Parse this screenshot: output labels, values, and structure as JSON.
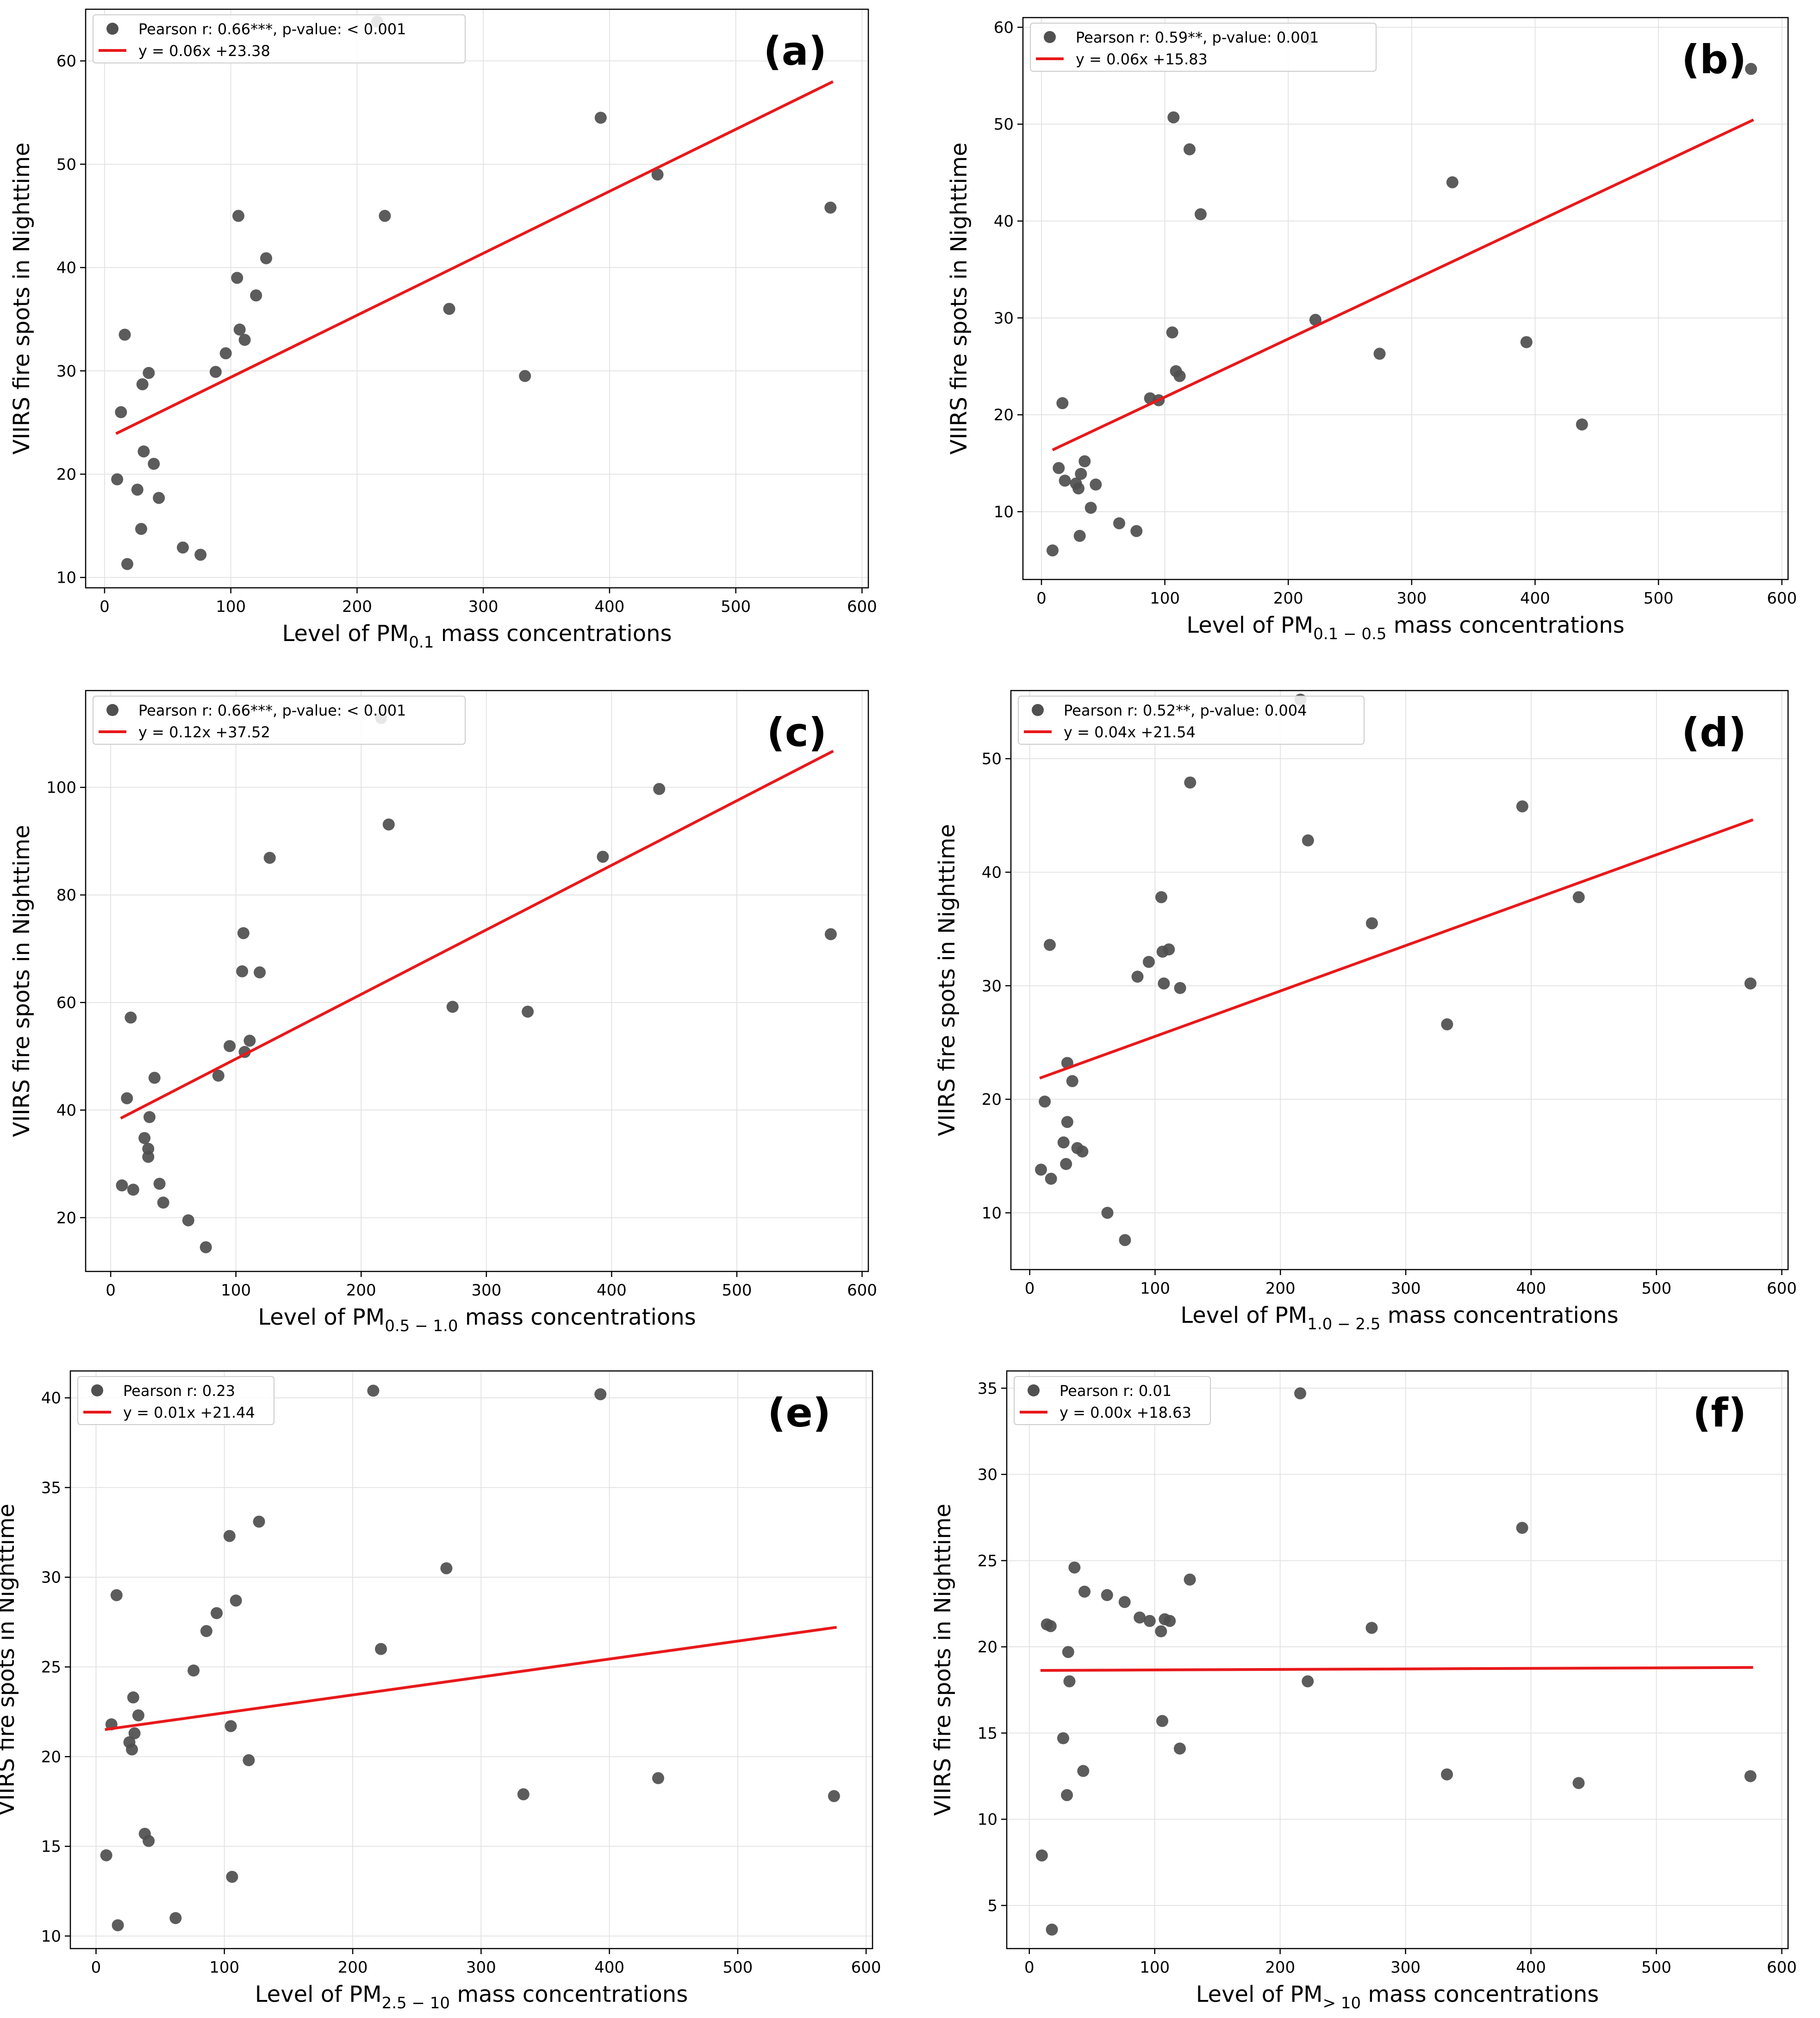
{
  "chart_data": [
    {
      "panel": "(a)",
      "type": "scatter",
      "xlabel_prefix": "Level of PM",
      "xlabel_sub": "0.1",
      "xlabel_suffix": "mass concentrations",
      "ylabel": "VIIRS fire spots in Nighttime",
      "xlim": [
        -15,
        605
      ],
      "ylim": [
        9,
        65
      ],
      "xticks": [
        0,
        100,
        200,
        300,
        400,
        500,
        600
      ],
      "yticks": [
        10,
        20,
        30,
        40,
        50,
        60
      ],
      "legend": {
        "scatter_label": "Pearson r: 0.66***, p-value: < 0.001",
        "line_label": "y = 0.06x +23.38"
      },
      "fit": {
        "slope": 0.06,
        "intercept": 23.38,
        "x_range": [
          10,
          576
        ]
      },
      "points": [
        [
          10,
          19.5
        ],
        [
          13,
          26
        ],
        [
          16,
          33.5
        ],
        [
          18,
          11.3
        ],
        [
          26,
          18.5
        ],
        [
          29,
          14.7
        ],
        [
          30,
          28.7
        ],
        [
          31,
          22.2
        ],
        [
          35,
          29.8
        ],
        [
          39,
          21
        ],
        [
          43,
          17.7
        ],
        [
          62,
          12.9
        ],
        [
          76,
          12.2
        ],
        [
          88,
          29.9
        ],
        [
          96,
          31.7
        ],
        [
          105,
          39
        ],
        [
          106,
          45
        ],
        [
          107,
          34
        ],
        [
          111,
          33
        ],
        [
          120,
          37.3
        ],
        [
          128,
          40.9
        ],
        [
          216,
          63.8
        ],
        [
          222,
          45
        ],
        [
          273,
          36
        ],
        [
          333,
          29.5
        ],
        [
          393,
          54.5
        ],
        [
          438,
          49
        ],
        [
          575,
          45.8
        ]
      ]
    },
    {
      "panel": "(b)",
      "type": "scatter",
      "xlabel_prefix": "Level of PM",
      "xlabel_sub": "0.1 − 0.5",
      "xlabel_suffix": "mass concentrations",
      "ylabel": "VIIRS fire spots in Nighttime",
      "xlim": [
        -15,
        605
      ],
      "ylim": [
        3,
        61
      ],
      "xticks": [
        0,
        100,
        200,
        300,
        400,
        500,
        600
      ],
      "yticks": [
        10,
        20,
        30,
        40,
        50,
        60
      ],
      "legend": {
        "scatter_label": "Pearson r: 0.59**, p-value: 0.001",
        "line_label": "y = 0.06x +15.83"
      },
      "fit": {
        "slope": 0.06,
        "intercept": 15.83,
        "x_range": [
          10,
          576
        ]
      },
      "points": [
        [
          9,
          6
        ],
        [
          14,
          14.5
        ],
        [
          17,
          21.2
        ],
        [
          19,
          13.2
        ],
        [
          28,
          12.9
        ],
        [
          30,
          12.4
        ],
        [
          31,
          7.5
        ],
        [
          32,
          13.9
        ],
        [
          35,
          15.2
        ],
        [
          40,
          10.4
        ],
        [
          44,
          12.8
        ],
        [
          63,
          8.8
        ],
        [
          77,
          8
        ],
        [
          88,
          21.7
        ],
        [
          95,
          21.5
        ],
        [
          106,
          28.5
        ],
        [
          107,
          50.7
        ],
        [
          109,
          24.5
        ],
        [
          112,
          24
        ],
        [
          120,
          47.4
        ],
        [
          129,
          40.7
        ],
        [
          217,
          58.8
        ],
        [
          222,
          29.8
        ],
        [
          274,
          26.3
        ],
        [
          333,
          44
        ],
        [
          393,
          27.5
        ],
        [
          438,
          19
        ],
        [
          575,
          55.7
        ]
      ]
    },
    {
      "panel": "(c)",
      "type": "scatter",
      "xlabel_prefix": "Level of PM",
      "xlabel_sub": "0.5 − 1.0",
      "xlabel_suffix": "mass concentrations",
      "ylabel": "VIIRS fire spots in Nighttime",
      "xlim": [
        -20,
        605
      ],
      "ylim": [
        10,
        118
      ],
      "xticks": [
        0,
        100,
        200,
        300,
        400,
        500,
        600
      ],
      "yticks": [
        20,
        40,
        60,
        80,
        100
      ],
      "legend": {
        "scatter_label": "Pearson r: 0.66***, p-value: < 0.001",
        "line_label": "y = 0.12x +37.52"
      },
      "fit": {
        "slope": 0.12,
        "intercept": 37.52,
        "x_range": [
          9,
          576
        ]
      },
      "points": [
        [
          9,
          26
        ],
        [
          13,
          42.2
        ],
        [
          16,
          57.2
        ],
        [
          18,
          25.2
        ],
        [
          27,
          34.8
        ],
        [
          30,
          32.8
        ],
        [
          30,
          31.3
        ],
        [
          31,
          38.7
        ],
        [
          35,
          46
        ],
        [
          39,
          26.3
        ],
        [
          42,
          22.8
        ],
        [
          62,
          19.5
        ],
        [
          76,
          14.5
        ],
        [
          86,
          46.4
        ],
        [
          95,
          51.9
        ],
        [
          105,
          65.8
        ],
        [
          106,
          72.9
        ],
        [
          107,
          50.8
        ],
        [
          111,
          52.9
        ],
        [
          119,
          65.6
        ],
        [
          127,
          86.9
        ],
        [
          216,
          112.9
        ],
        [
          222,
          93.1
        ],
        [
          273,
          59.2
        ],
        [
          333,
          58.3
        ],
        [
          393,
          87.1
        ],
        [
          438,
          99.7
        ],
        [
          575,
          72.7
        ]
      ]
    },
    {
      "panel": "(d)",
      "type": "scatter",
      "xlabel_prefix": "Level of PM",
      "xlabel_sub": "1.0 − 2.5",
      "xlabel_suffix": "mass concentrations",
      "ylabel": "VIIRS fire spots in Nighttime",
      "xlim": [
        -15,
        605
      ],
      "ylim": [
        5,
        56
      ],
      "xticks": [
        0,
        100,
        200,
        300,
        400,
        500,
        600
      ],
      "yticks": [
        10,
        20,
        30,
        40,
        50
      ],
      "legend": {
        "scatter_label": "Pearson r: 0.52**, p-value: 0.004",
        "line_label": "y = 0.04x +21.54"
      },
      "fit": {
        "slope": 0.04,
        "intercept": 21.54,
        "x_range": [
          9,
          576
        ]
      },
      "points": [
        [
          9,
          13.8
        ],
        [
          12,
          19.8
        ],
        [
          16,
          33.6
        ],
        [
          17,
          13
        ],
        [
          27,
          16.2
        ],
        [
          29,
          14.3
        ],
        [
          30,
          23.2
        ],
        [
          30,
          18
        ],
        [
          34,
          21.6
        ],
        [
          38,
          15.7
        ],
        [
          42,
          15.4
        ],
        [
          62,
          10
        ],
        [
          76,
          7.6
        ],
        [
          86,
          30.8
        ],
        [
          95,
          32.1
        ],
        [
          105,
          37.8
        ],
        [
          106,
          33
        ],
        [
          107,
          30.2
        ],
        [
          111,
          33.2
        ],
        [
          120,
          29.8
        ],
        [
          128,
          47.9
        ],
        [
          216,
          55.2
        ],
        [
          222,
          42.8
        ],
        [
          273,
          35.5
        ],
        [
          333,
          26.6
        ],
        [
          393,
          45.8
        ],
        [
          438,
          37.8
        ],
        [
          575,
          30.2
        ]
      ]
    },
    {
      "panel": "(e)",
      "type": "scatter",
      "xlabel_prefix": "Level of PM",
      "xlabel_sub": "2.5 − 10",
      "xlabel_suffix": "mass concentrations",
      "ylabel": "VIIRS fire spots in Nighttime",
      "xlim": [
        -20,
        605
      ],
      "ylim": [
        9.3,
        41.5
      ],
      "xticks": [
        0,
        100,
        200,
        300,
        400,
        500,
        600
      ],
      "yticks": [
        10,
        15,
        20,
        25,
        30,
        35,
        40
      ],
      "legend": {
        "scatter_label": "Pearson r: 0.23",
        "line_label": "y = 0.01x +21.44"
      },
      "fit": {
        "slope": 0.01,
        "intercept": 21.44,
        "x_range": [
          8,
          576
        ]
      },
      "points": [
        [
          8,
          14.5
        ],
        [
          12,
          21.8
        ],
        [
          16,
          29
        ],
        [
          17,
          10.6
        ],
        [
          26,
          20.8
        ],
        [
          28,
          20.4
        ],
        [
          29,
          23.3
        ],
        [
          30,
          21.3
        ],
        [
          33,
          22.3
        ],
        [
          38,
          15.7
        ],
        [
          41,
          15.3
        ],
        [
          62,
          11
        ],
        [
          76,
          24.8
        ],
        [
          86,
          27
        ],
        [
          94,
          28
        ],
        [
          104,
          32.3
        ],
        [
          105,
          21.7
        ],
        [
          106,
          13.3
        ],
        [
          109,
          28.7
        ],
        [
          119,
          19.8
        ],
        [
          127,
          33.1
        ],
        [
          216,
          40.4
        ],
        [
          222,
          26
        ],
        [
          273,
          30.5
        ],
        [
          333,
          17.9
        ],
        [
          393,
          40.2
        ],
        [
          438,
          18.8
        ],
        [
          575,
          17.8
        ]
      ]
    },
    {
      "panel": "(f)",
      "type": "scatter",
      "xlabel_prefix": "Level of PM",
      "xlabel_sub": "> 10",
      "xlabel_suffix": "mass concentrations",
      "ylabel": "VIIRS fire spots in Nighttime",
      "xlim": [
        -18,
        605
      ],
      "ylim": [
        2.5,
        36
      ],
      "xticks": [
        0,
        100,
        200,
        300,
        400,
        500,
        600
      ],
      "yticks": [
        5,
        10,
        15,
        20,
        25,
        30,
        35
      ],
      "legend": {
        "scatter_label": "Pearson r: 0.01",
        "line_label": "y = 0.00x +18.63"
      },
      "fit": {
        "slope": 0.0003,
        "intercept": 18.63,
        "x_range": [
          10,
          576
        ]
      },
      "points": [
        [
          10,
          7.9
        ],
        [
          14,
          21.3
        ],
        [
          17,
          21.2
        ],
        [
          18,
          3.6
        ],
        [
          27,
          14.7
        ],
        [
          30,
          11.4
        ],
        [
          31,
          19.7
        ],
        [
          32,
          18
        ],
        [
          36,
          24.6
        ],
        [
          43,
          12.8
        ],
        [
          44,
          23.2
        ],
        [
          62,
          23
        ],
        [
          76,
          22.6
        ],
        [
          88,
          21.7
        ],
        [
          96,
          21.5
        ],
        [
          105,
          20.9
        ],
        [
          106,
          15.7
        ],
        [
          108,
          21.6
        ],
        [
          112,
          21.5
        ],
        [
          120,
          14.1
        ],
        [
          128,
          23.9
        ],
        [
          216,
          34.7
        ],
        [
          222,
          18
        ],
        [
          273,
          21.1
        ],
        [
          333,
          12.6
        ],
        [
          393,
          26.9
        ],
        [
          438,
          12.1
        ],
        [
          575,
          12.5
        ]
      ]
    }
  ]
}
